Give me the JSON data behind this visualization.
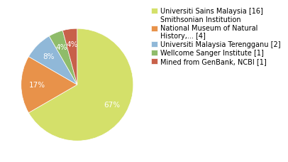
{
  "legend_labels": [
    "Universiti Sains Malaysia [16]",
    "Smithsonian Institution\nNational Museum of Natural\nHistory,... [4]",
    "Universiti Malaysia Terengganu [2]",
    "Wellcome Sanger Institute [1]",
    "Mined from GenBank, NCBI [1]"
  ],
  "values": [
    16,
    4,
    2,
    1,
    1
  ],
  "colors": [
    "#d4e06a",
    "#e8924a",
    "#90b8d8",
    "#8fbc6a",
    "#c8614a"
  ],
  "background_color": "#ffffff",
  "pct_color": "white",
  "fontsize": 7.5,
  "legend_fontsize": 7.0
}
